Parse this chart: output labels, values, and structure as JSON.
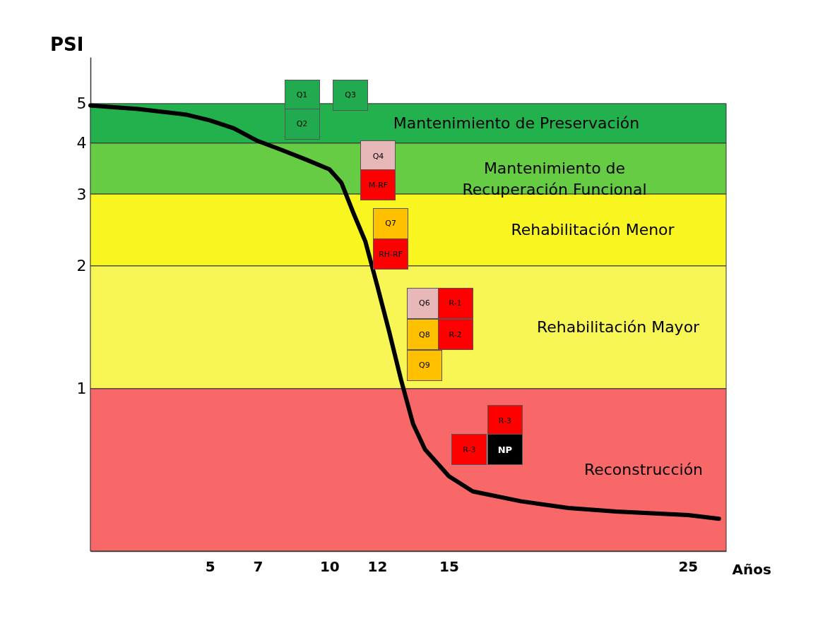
{
  "chart_data": {
    "type": "line",
    "xlabel": "Años",
    "ylabel": "PSI",
    "log": "y",
    "xlim": [
      0,
      26.6
    ],
    "xticks": [
      5,
      7,
      10,
      12,
      15,
      25
    ],
    "ylim": [
      0.4,
      6.5
    ],
    "yticks": [
      1,
      2,
      3,
      4,
      5
    ],
    "x": [
      0,
      2,
      4,
      5,
      6,
      7,
      8,
      9,
      10,
      10.5,
      11,
      11.5,
      12,
      12.5,
      13,
      13.5,
      14,
      15,
      16,
      18,
      20,
      22,
      25,
      26.3
    ],
    "series": [
      {
        "color": "#000000",
        "values": [
          4.95,
          4.85,
          4.7,
          4.55,
          4.35,
          4.05,
          3.85,
          3.65,
          3.45,
          3.2,
          2.7,
          2.3,
          1.79,
          1.38,
          1.05,
          0.82,
          0.71,
          0.61,
          0.56,
          0.53,
          0.51,
          0.5,
          0.49,
          0.48
        ]
      }
    ],
    "bands": [
      {
        "axis": "y",
        "from": 4,
        "to": 5,
        "label": "Mantenimiento de Preservación",
        "color": "#22b14c"
      },
      {
        "axis": "y",
        "from": 3,
        "to": 4,
        "label": "Mantenimiento de\nRecuperación Funcional",
        "color": "#66cc44"
      },
      {
        "axis": "y",
        "from": 2,
        "to": 3,
        "label": "Rehabilitación Menor",
        "color": "#f9f520"
      },
      {
        "axis": "y",
        "from": 1,
        "to": 2,
        "label": "Rehabilitación Mayor",
        "color": "#f7f654"
      },
      {
        "axis": "y",
        "from": 0.4,
        "to": 1,
        "label": "Reconstrucción",
        "color": "#f86868"
      }
    ],
    "annotations": [
      "Q1",
      "Q3",
      "Q2",
      "Q4",
      "M-RF",
      "Q7",
      "RH-RF",
      "Q6",
      "R-1",
      "Q8",
      "R-2",
      "Q9",
      "R-3",
      "R-3",
      "NP"
    ]
  }
}
